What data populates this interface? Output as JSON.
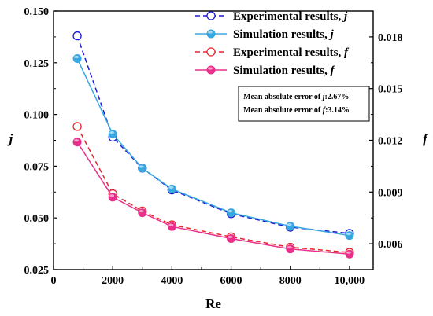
{
  "chart_data": {
    "type": "line",
    "xlabel": "Re",
    "ylabel_left": "j",
    "ylabel_right": "f",
    "xlim": [
      0,
      10800
    ],
    "ylim_left": [
      0.025,
      0.15
    ],
    "ylim_right": [
      0.0045,
      0.0195
    ],
    "x_ticks": [
      0,
      2000,
      4000,
      6000,
      8000,
      10000
    ],
    "x_tick_labels": [
      "0",
      "2000",
      "4000",
      "6000",
      "8000",
      "10,000"
    ],
    "y_left_ticks": [
      0.025,
      0.05,
      0.075,
      0.1,
      0.125,
      0.15
    ],
    "y_left_tick_labels": [
      "0.025",
      "0.050",
      "0.075",
      "0.100",
      "0.125",
      "0.150"
    ],
    "y_right_ticks": [
      0.006,
      0.009,
      0.012,
      0.015,
      0.018
    ],
    "y_right_tick_labels": [
      "0.006",
      "0.009",
      "0.012",
      "0.015",
      "0.018"
    ],
    "x": [
      800,
      2000,
      3000,
      4000,
      6000,
      8000,
      10000
    ],
    "series": [
      {
        "name_prefix": "Experimental results, ",
        "name_symbol": "j",
        "axis": "left",
        "color": "#1a1ad6",
        "style": "dashed",
        "marker": "open",
        "values": [
          0.138,
          0.089,
          0.074,
          0.0635,
          0.052,
          0.0455,
          0.0425
        ]
      },
      {
        "name_prefix": "Simulation results, ",
        "name_symbol": "j",
        "axis": "left",
        "color": "#3aa8e0",
        "style": "solid",
        "marker": "filled",
        "values": [
          0.127,
          0.0905,
          0.074,
          0.064,
          0.0525,
          0.046,
          0.0415
        ]
      },
      {
        "name_prefix": "Experimental results, ",
        "name_symbol": "f",
        "axis": "right",
        "color": "#e8242e",
        "style": "dashed",
        "marker": "open",
        "values": [
          0.0128,
          0.0089,
          0.0079,
          0.0071,
          0.0064,
          0.0058,
          0.0055
        ]
      },
      {
        "name_prefix": "Simulation results, ",
        "name_symbol": "f",
        "axis": "right",
        "color": "#e8308a",
        "style": "solid",
        "marker": "filled",
        "values": [
          0.0119,
          0.0087,
          0.0078,
          0.007,
          0.0063,
          0.0057,
          0.0054
        ]
      }
    ],
    "legend_position": "top-right",
    "annotations": [
      {
        "prefix": "Mean absolute error of ",
        "symbol": "j",
        "value": ":2.67%"
      },
      {
        "prefix": "Mean absolute error of ",
        "symbol": "f",
        "value": ":3.14%"
      }
    ]
  }
}
